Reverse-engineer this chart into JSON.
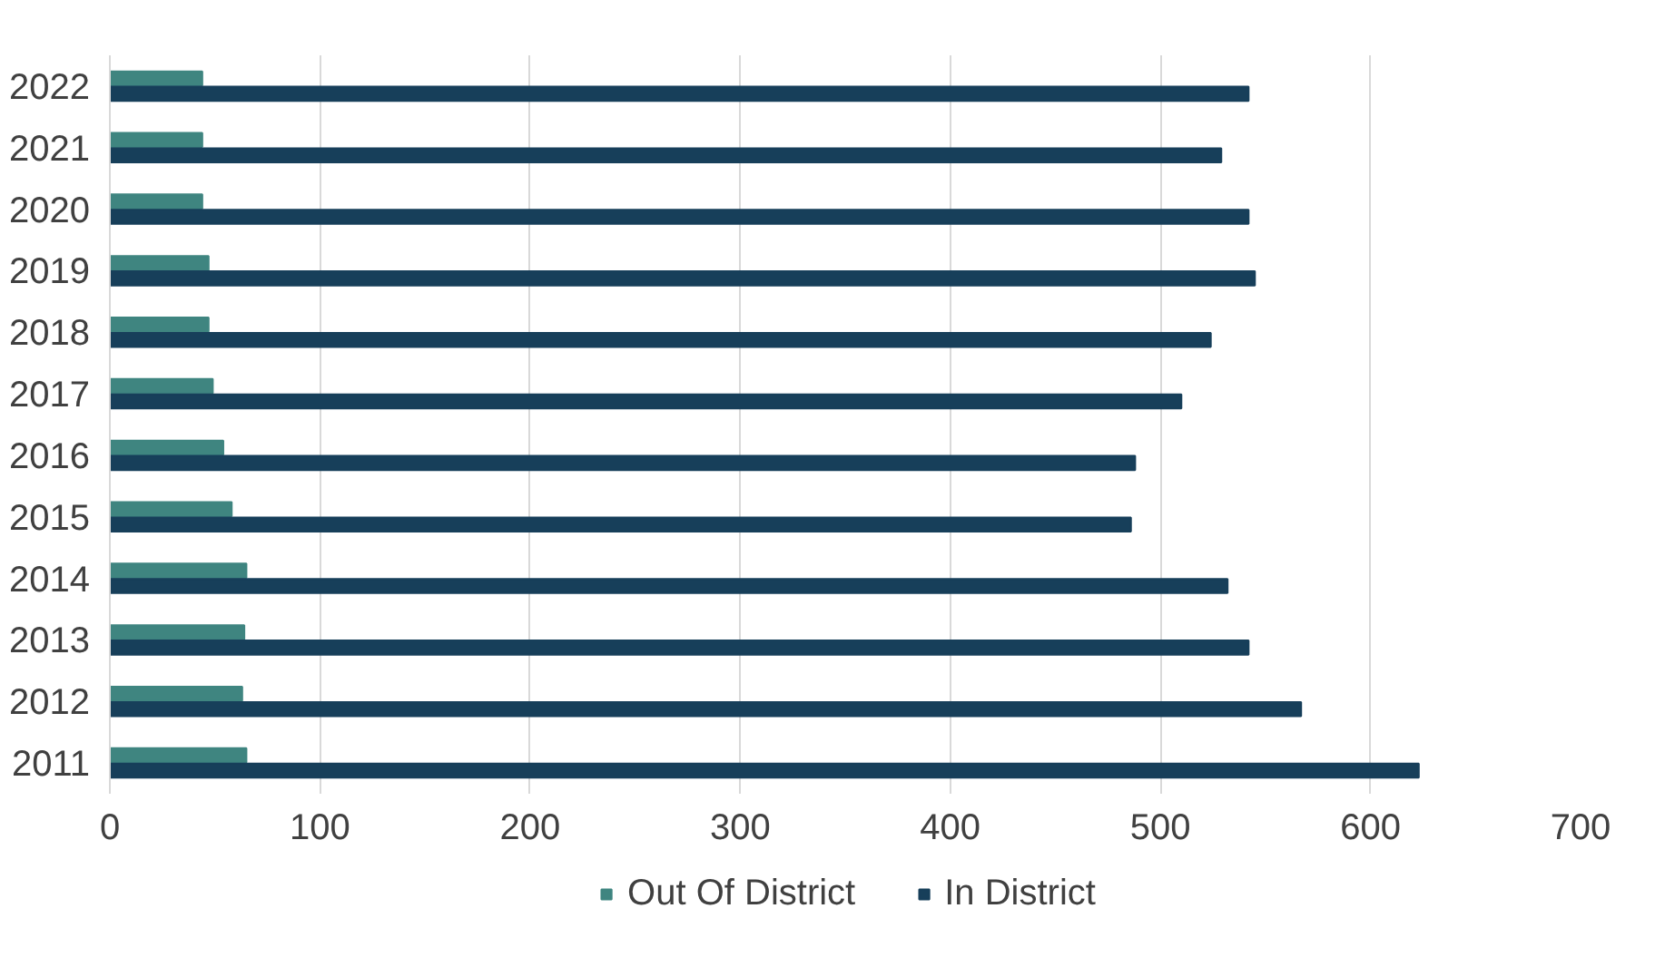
{
  "chart_data": {
    "type": "bar",
    "orientation": "horizontal",
    "categories": [
      "2022",
      "2021",
      "2020",
      "2019",
      "2018",
      "2017",
      "2016",
      "2015",
      "2014",
      "2013",
      "2012",
      "2011"
    ],
    "series": [
      {
        "name": "Out Of District",
        "color": "#3f8580",
        "values": [
          44,
          44,
          44,
          47,
          47,
          49,
          54,
          58,
          65,
          64,
          63,
          65
        ]
      },
      {
        "name": "In District",
        "color": "#173f5a",
        "values": [
          542,
          529,
          542,
          545,
          524,
          510,
          488,
          486,
          532,
          542,
          567,
          623
        ]
      }
    ],
    "xlim": [
      0,
      700
    ],
    "xticks": [
      0,
      100,
      200,
      300,
      400,
      500,
      600,
      700
    ],
    "grid": "x",
    "legend": "bottom"
  }
}
